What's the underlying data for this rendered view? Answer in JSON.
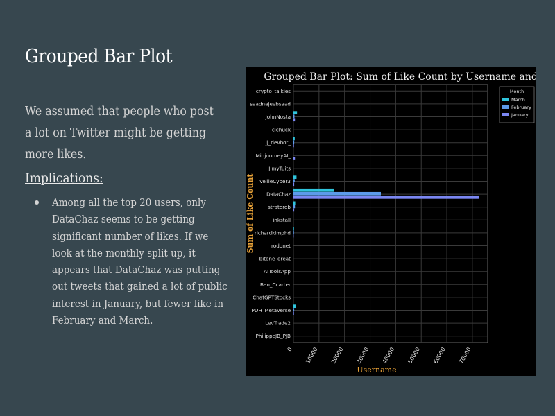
{
  "slide": {
    "title": "Grouped Bar Plot",
    "intro": "We assumed that people who post a lot on Twitter might be getting more likes.",
    "implications_heading": "Implications:",
    "bullets": [
      "Among all the top 20 users, only DataChaz seems to be getting significant number of likes. If we look at the monthly split up, it appears that DataChaz was putting out tweets that gained a lot of public interest in January, but fewer like in February and March."
    ]
  },
  "chart_data": {
    "type": "bar",
    "orientation": "horizontal",
    "title": "Grouped Bar Plot: Sum of Like Count by Username and Month",
    "xlabel": "Username",
    "ylabel": "Sum of Like Count",
    "xlim": [
      0,
      76000
    ],
    "x_ticks": [
      0,
      10000,
      20000,
      30000,
      40000,
      50000,
      60000,
      70000
    ],
    "grid": true,
    "legend_position": "top-right",
    "legend_title": "Month",
    "categories": [
      "crypto_talkies",
      "saadnajeebsaad",
      "JohnNosta",
      "cichuck",
      "jj_devbot_",
      "MidjourneyAI_",
      "JimyTuits",
      "VeilleCyber3",
      "DataChaz",
      "stratorob",
      "inkstall",
      "richardkimphd",
      "rodonet",
      "bitone_great",
      "AIToolsApp",
      "Ben_Ccarter",
      "ChatGPTStocks",
      "PDH_Metaverse",
      "LevTrade2",
      "PhilippeJB_PJB"
    ],
    "series": [
      {
        "name": "March",
        "color": "#2fc4dc",
        "values": [
          0,
          0,
          1400,
          0,
          500,
          0,
          0,
          1200,
          15800,
          700,
          0,
          200,
          0,
          0,
          0,
          0,
          0,
          1000,
          0,
          0
        ]
      },
      {
        "name": "February",
        "color": "#5c9bea",
        "values": [
          0,
          0,
          400,
          0,
          300,
          0,
          0,
          500,
          34200,
          600,
          0,
          200,
          0,
          0,
          0,
          0,
          0,
          300,
          0,
          0
        ]
      },
      {
        "name": "January",
        "color": "#7b87f2",
        "values": [
          0,
          0,
          600,
          0,
          200,
          600,
          0,
          300,
          72500,
          300,
          0,
          100,
          0,
          0,
          0,
          0,
          0,
          200,
          0,
          0
        ]
      }
    ]
  }
}
